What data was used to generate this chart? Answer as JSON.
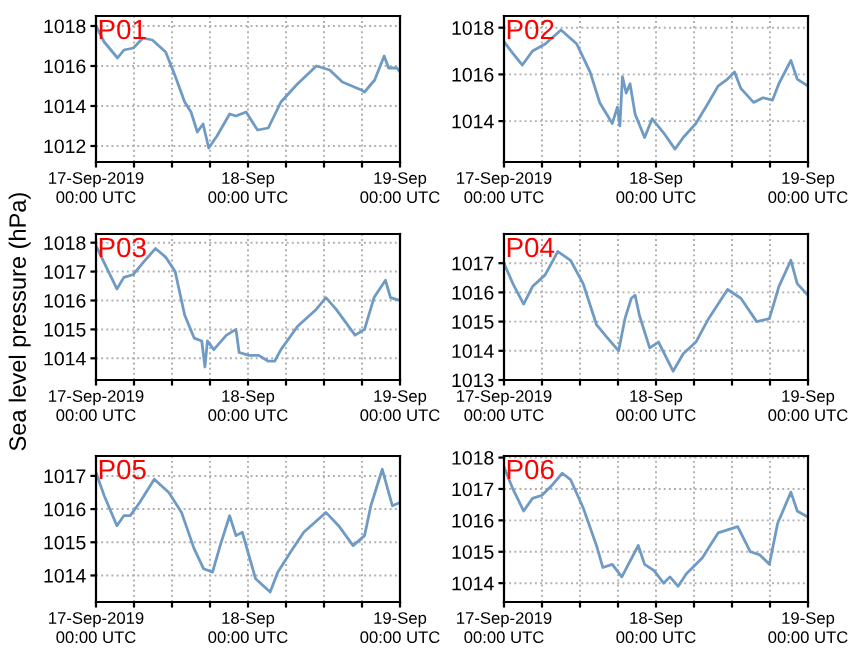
{
  "chart_data": [
    {
      "type": "line",
      "title": "P01",
      "xlim": [
        "2019-09-17T00:00",
        "2019-09-19T00:00"
      ],
      "ylim": [
        1011.2,
        1018.5
      ],
      "yticks": [
        1012,
        1014,
        1016,
        1018
      ],
      "xticks": [
        {
          "value": "2019-09-17T00:00",
          "label": "17-Sep-2019\n00:00 UTC"
        },
        {
          "value": "2019-09-17T06:00",
          "label": null
        },
        {
          "value": "2019-09-17T12:00",
          "label": null
        },
        {
          "value": "2019-09-17T18:00",
          "label": null
        },
        {
          "value": "2019-09-18T00:00",
          "label": "18-Sep\n00:00 UTC"
        },
        {
          "value": "2019-09-18T06:00",
          "label": null
        },
        {
          "value": "2019-09-18T12:00",
          "label": null
        },
        {
          "value": "2019-09-18T18:00",
          "label": null
        },
        {
          "value": "2019-09-19T00:00",
          "label": "19-Sep\n00:00 UTC"
        }
      ],
      "grid": true,
      "series": [
        {
          "color": "#6f9ac4",
          "x": [
            "2019-09-17T00:00",
            "2019-09-17T01:18",
            "2019-09-17T03:24",
            "2019-09-17T04:24",
            "2019-09-17T05:54",
            "2019-09-17T07:24",
            "2019-09-17T08:54",
            "2019-09-17T11:00",
            "2019-09-17T12:30",
            "2019-09-17T14:00",
            "2019-09-17T15:00",
            "2019-09-17T16:00",
            "2019-09-17T16:54",
            "2019-09-17T17:48",
            "2019-09-17T19:06",
            "2019-09-17T21:06",
            "2019-09-17T22:06",
            "2019-09-17T23:42",
            "2019-09-18T01:30",
            "2019-09-18T03:12",
            "2019-09-18T05:12",
            "2019-09-18T07:48",
            "2019-09-18T10:48",
            "2019-09-18T12:54",
            "2019-09-18T14:54",
            "2019-09-18T17:54",
            "2019-09-18T18:24",
            "2019-09-18T20:00",
            "2019-09-18T21:30",
            "2019-09-18T22:12",
            "2019-09-18T23:30",
            "2019-09-19T00:00"
          ],
          "values": [
            1018.0,
            1017.2,
            1016.4,
            1016.8,
            1016.9,
            1017.4,
            1017.3,
            1016.7,
            1015.5,
            1014.2,
            1013.7,
            1012.7,
            1013.1,
            1011.9,
            1012.5,
            1013.6,
            1013.5,
            1013.7,
            1012.8,
            1012.9,
            1014.2,
            1015.1,
            1016.0,
            1015.8,
            1015.2,
            1014.8,
            1014.7,
            1015.3,
            1016.5,
            1015.9,
            1015.9,
            1015.7
          ]
        }
      ]
    },
    {
      "type": "line",
      "title": "P02",
      "xlim": [
        "2019-09-17T00:00",
        "2019-09-19T00:00"
      ],
      "ylim": [
        1012.25,
        1018.5
      ],
      "yticks": [
        1014,
        1016,
        1018
      ],
      "xticks": [
        {
          "value": "2019-09-17T00:00",
          "label": "17-Sep-2019\n00:00 UTC"
        },
        {
          "value": "2019-09-17T06:00",
          "label": null
        },
        {
          "value": "2019-09-17T12:00",
          "label": null
        },
        {
          "value": "2019-09-17T18:00",
          "label": null
        },
        {
          "value": "2019-09-18T00:00",
          "label": "18-Sep\n00:00 UTC"
        },
        {
          "value": "2019-09-18T06:00",
          "label": null
        },
        {
          "value": "2019-09-18T12:00",
          "label": null
        },
        {
          "value": "2019-09-18T18:00",
          "label": null
        },
        {
          "value": "2019-09-19T00:00",
          "label": "19-Sep\n00:00 UTC"
        }
      ],
      "grid": true,
      "series": [
        {
          "color": "#6f9ac4",
          "x": [
            "2019-09-17T00:00",
            "2019-09-17T01:24",
            "2019-09-17T02:54",
            "2019-09-17T04:30",
            "2019-09-17T06:30",
            "2019-09-17T09:00",
            "2019-09-17T11:30",
            "2019-09-17T13:36",
            "2019-09-17T15:06",
            "2019-09-17T17:06",
            "2019-09-17T17:54",
            "2019-09-17T18:18",
            "2019-09-17T18:42",
            "2019-09-17T19:18",
            "2019-09-17T19:54",
            "2019-09-17T20:42",
            "2019-09-17T22:12",
            "2019-09-17T23:24",
            "2019-09-18T01:12",
            "2019-09-18T03:00",
            "2019-09-18T04:18",
            "2019-09-18T06:18",
            "2019-09-18T08:18",
            "2019-09-18T09:48",
            "2019-09-18T11:18",
            "2019-09-18T12:24",
            "2019-09-18T13:24",
            "2019-09-18T15:24",
            "2019-09-18T16:54",
            "2019-09-18T18:24",
            "2019-09-18T19:24",
            "2019-09-18T21:18",
            "2019-09-18T22:18",
            "2019-09-19T00:00"
          ],
          "values": [
            1017.4,
            1016.9,
            1016.4,
            1017.0,
            1017.3,
            1017.9,
            1017.3,
            1016.1,
            1014.8,
            1013.9,
            1014.6,
            1013.8,
            1015.9,
            1015.2,
            1015.6,
            1014.3,
            1013.3,
            1014.1,
            1013.5,
            1012.8,
            1013.3,
            1013.9,
            1014.8,
            1015.5,
            1015.8,
            1016.1,
            1015.4,
            1014.8,
            1015.0,
            1014.9,
            1015.6,
            1016.6,
            1015.8,
            1015.5
          ]
        }
      ]
    },
    {
      "type": "line",
      "title": "P03",
      "ylabel": "Sea level pressure (hPa)",
      "xlim": [
        "2019-09-17T00:00",
        "2019-09-19T00:00"
      ],
      "ylim": [
        1013.25,
        1018.3
      ],
      "yticks": [
        1014,
        1015,
        1016,
        1017,
        1018
      ],
      "xticks": [
        {
          "value": "2019-09-17T00:00",
          "label": "17-Sep-2019\n00:00 UTC"
        },
        {
          "value": "2019-09-17T06:00",
          "label": null
        },
        {
          "value": "2019-09-17T12:00",
          "label": null
        },
        {
          "value": "2019-09-17T18:00",
          "label": null
        },
        {
          "value": "2019-09-18T00:00",
          "label": "18-Sep\n00:00 UTC"
        },
        {
          "value": "2019-09-18T06:00",
          "label": null
        },
        {
          "value": "2019-09-18T12:00",
          "label": null
        },
        {
          "value": "2019-09-18T18:00",
          "label": null
        },
        {
          "value": "2019-09-19T00:00",
          "label": "19-Sep\n00:00 UTC"
        }
      ],
      "grid": true,
      "series": [
        {
          "color": "#6f9ac4",
          "x": [
            "2019-09-17T00:00",
            "2019-09-17T01:18",
            "2019-09-17T03:18",
            "2019-09-17T04:24",
            "2019-09-17T05:54",
            "2019-09-17T07:24",
            "2019-09-17T09:24",
            "2019-09-17T11:00",
            "2019-09-17T12:30",
            "2019-09-17T14:00",
            "2019-09-17T15:30",
            "2019-09-17T16:42",
            "2019-09-17T17:12",
            "2019-09-17T17:36",
            "2019-09-17T18:36",
            "2019-09-17T20:36",
            "2019-09-17T22:06",
            "2019-09-17T22:36",
            "2019-09-18T00:12",
            "2019-09-18T01:42",
            "2019-09-18T03:12",
            "2019-09-18T04:12",
            "2019-09-18T05:12",
            "2019-09-18T07:48",
            "2019-09-18T10:48",
            "2019-09-18T12:18",
            "2019-09-18T13:54",
            "2019-09-18T16:54",
            "2019-09-18T18:24",
            "2019-09-18T19:54",
            "2019-09-18T21:42",
            "2019-09-18T22:30",
            "2019-09-19T00:00"
          ],
          "values": [
            1017.9,
            1017.3,
            1016.4,
            1016.8,
            1016.9,
            1017.3,
            1017.8,
            1017.5,
            1017.0,
            1015.5,
            1014.7,
            1014.6,
            1013.7,
            1014.6,
            1014.3,
            1014.8,
            1015.0,
            1014.2,
            1014.1,
            1014.1,
            1013.9,
            1013.9,
            1014.3,
            1015.1,
            1015.7,
            1016.1,
            1015.7,
            1014.8,
            1015.0,
            1016.1,
            1016.7,
            1016.1,
            1016.0
          ]
        }
      ]
    },
    {
      "type": "line",
      "title": "P04",
      "xlim": [
        "2019-09-17T00:00",
        "2019-09-19T00:00"
      ],
      "ylim": [
        1013,
        1018
      ],
      "yticks": [
        1013,
        1014,
        1015,
        1016,
        1017
      ],
      "xticks": [
        {
          "value": "2019-09-17T00:00",
          "label": "17-Sep-2019\n00:00 UTC"
        },
        {
          "value": "2019-09-17T06:00",
          "label": null
        },
        {
          "value": "2019-09-17T12:00",
          "label": null
        },
        {
          "value": "2019-09-17T18:00",
          "label": null
        },
        {
          "value": "2019-09-18T00:00",
          "label": "18-Sep\n00:00 UTC"
        },
        {
          "value": "2019-09-18T06:00",
          "label": null
        },
        {
          "value": "2019-09-18T12:00",
          "label": null
        },
        {
          "value": "2019-09-18T18:00",
          "label": null
        },
        {
          "value": "2019-09-19T00:00",
          "label": "19-Sep\n00:00 UTC"
        }
      ],
      "grid": true,
      "series": [
        {
          "color": "#6f9ac4",
          "x": [
            "2019-09-17T00:00",
            "2019-09-17T01:24",
            "2019-09-17T03:06",
            "2019-09-17T04:30",
            "2019-09-17T06:30",
            "2019-09-17T08:30",
            "2019-09-17T10:30",
            "2019-09-17T12:30",
            "2019-09-17T14:36",
            "2019-09-17T16:06",
            "2019-09-17T18:06",
            "2019-09-17T19:06",
            "2019-09-17T20:06",
            "2019-09-17T20:42",
            "2019-09-17T21:24",
            "2019-09-17T23:00",
            "2019-09-18T00:24",
            "2019-09-18T02:42",
            "2019-09-18T04:18",
            "2019-09-18T06:18",
            "2019-09-18T08:18",
            "2019-09-18T11:18",
            "2019-09-18T13:24",
            "2019-09-18T15:54",
            "2019-09-18T17:54",
            "2019-09-18T19:24",
            "2019-09-18T21:18",
            "2019-09-18T22:18",
            "2019-09-19T00:00"
          ],
          "values": [
            1017.0,
            1016.3,
            1015.6,
            1016.2,
            1016.6,
            1017.4,
            1017.1,
            1016.3,
            1014.9,
            1014.5,
            1014.0,
            1015.1,
            1015.8,
            1015.9,
            1015.2,
            1014.1,
            1014.3,
            1013.3,
            1013.9,
            1014.3,
            1015.1,
            1016.1,
            1015.8,
            1015.0,
            1015.1,
            1016.2,
            1017.1,
            1016.3,
            1015.9
          ]
        }
      ]
    },
    {
      "type": "line",
      "title": "P05",
      "xlim": [
        "2019-09-17T00:00",
        "2019-09-19T00:00"
      ],
      "ylim": [
        1013.2,
        1017.6
      ],
      "yticks": [
        1014,
        1015,
        1016,
        1017
      ],
      "xticks": [
        {
          "value": "2019-09-17T00:00",
          "label": "17-Sep-2019\n00:00 UTC"
        },
        {
          "value": "2019-09-17T06:00",
          "label": null
        },
        {
          "value": "2019-09-17T12:00",
          "label": null
        },
        {
          "value": "2019-09-17T18:00",
          "label": null
        },
        {
          "value": "2019-09-18T00:00",
          "label": "18-Sep\n00:00 UTC"
        },
        {
          "value": "2019-09-18T06:00",
          "label": null
        },
        {
          "value": "2019-09-18T12:00",
          "label": null
        },
        {
          "value": "2019-09-18T18:00",
          "label": null
        },
        {
          "value": "2019-09-19T00:00",
          "label": "19-Sep\n00:00 UTC"
        }
      ],
      "grid": true,
      "series": [
        {
          "color": "#6f9ac4",
          "x": [
            "2019-09-17T00:00",
            "2019-09-17T01:18",
            "2019-09-17T03:18",
            "2019-09-17T04:24",
            "2019-09-17T05:24",
            "2019-09-17T06:54",
            "2019-09-17T09:12",
            "2019-09-17T11:30",
            "2019-09-17T13:30",
            "2019-09-17T15:30",
            "2019-09-17T17:00",
            "2019-09-17T18:24",
            "2019-09-17T19:36",
            "2019-09-17T21:06",
            "2019-09-17T22:06",
            "2019-09-17T23:06",
            "2019-09-18T01:12",
            "2019-09-18T03:30",
            "2019-09-18T04:42",
            "2019-09-18T06:42",
            "2019-09-18T08:48",
            "2019-09-18T12:18",
            "2019-09-18T14:18",
            "2019-09-18T16:36",
            "2019-09-18T18:24",
            "2019-09-18T19:24",
            "2019-09-18T21:12",
            "2019-09-18T22:48",
            "2019-09-19T00:00"
          ],
          "values": [
            1017.1,
            1016.4,
            1015.5,
            1015.8,
            1015.8,
            1016.2,
            1016.9,
            1016.5,
            1015.9,
            1014.8,
            1014.2,
            1014.1,
            1014.9,
            1015.8,
            1015.2,
            1015.3,
            1013.9,
            1013.5,
            1014.1,
            1014.7,
            1015.3,
            1015.9,
            1015.5,
            1014.9,
            1015.2,
            1016.1,
            1017.2,
            1016.1,
            1016.2
          ]
        }
      ]
    },
    {
      "type": "line",
      "title": "P06",
      "xlim": [
        "2019-09-17T00:00",
        "2019-09-19T00:00"
      ],
      "ylim": [
        1013.4,
        1018.05
      ],
      "yticks": [
        1014,
        1015,
        1016,
        1017,
        1018
      ],
      "xticks": [
        {
          "value": "2019-09-17T00:00",
          "label": "17-Sep-2019\n00:00 UTC"
        },
        {
          "value": "2019-09-17T06:00",
          "label": null
        },
        {
          "value": "2019-09-17T12:00",
          "label": null
        },
        {
          "value": "2019-09-17T18:00",
          "label": null
        },
        {
          "value": "2019-09-18T00:00",
          "label": "18-Sep\n00:00 UTC"
        },
        {
          "value": "2019-09-18T06:00",
          "label": null
        },
        {
          "value": "2019-09-18T12:00",
          "label": null
        },
        {
          "value": "2019-09-18T18:00",
          "label": null
        },
        {
          "value": "2019-09-19T00:00",
          "label": "19-Sep\n00:00 UTC"
        }
      ],
      "grid": true,
      "series": [
        {
          "color": "#6f9ac4",
          "x": [
            "2019-09-17T00:00",
            "2019-09-17T01:24",
            "2019-09-17T03:06",
            "2019-09-17T04:30",
            "2019-09-17T06:00",
            "2019-09-17T07:30",
            "2019-09-17T09:12",
            "2019-09-17T10:30",
            "2019-09-17T12:30",
            "2019-09-17T14:36",
            "2019-09-17T15:36",
            "2019-09-17T17:06",
            "2019-09-17T18:36",
            "2019-09-17T21:12",
            "2019-09-17T22:12",
            "2019-09-17T23:42",
            "2019-09-18T01:12",
            "2019-09-18T02:12",
            "2019-09-18T03:30",
            "2019-09-18T04:48",
            "2019-09-18T07:18",
            "2019-09-18T09:48",
            "2019-09-18T12:54",
            "2019-09-18T14:54",
            "2019-09-18T16:24",
            "2019-09-18T17:54",
            "2019-09-18T19:12",
            "2019-09-18T21:18",
            "2019-09-18T22:18",
            "2019-09-19T00:00"
          ],
          "values": [
            1017.7,
            1017.0,
            1016.3,
            1016.7,
            1016.8,
            1017.1,
            1017.5,
            1017.3,
            1016.4,
            1015.2,
            1014.5,
            1014.6,
            1014.2,
            1015.2,
            1014.6,
            1014.4,
            1014.0,
            1014.2,
            1013.9,
            1014.3,
            1014.8,
            1015.6,
            1015.8,
            1015.0,
            1014.9,
            1014.6,
            1015.9,
            1016.9,
            1016.3,
            1016.1
          ]
        }
      ]
    }
  ]
}
